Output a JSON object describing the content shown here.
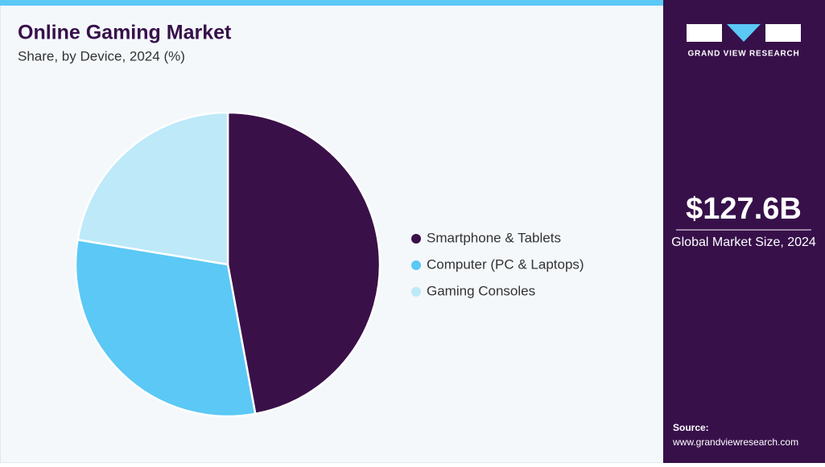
{
  "chart_data": {
    "type": "pie",
    "title": "Online Gaming Market",
    "subtitle": "Share, by Device, 2024 (%)",
    "categories": [
      "Smartphone & Tablets",
      "Computer (PC & Laptops)",
      "Gaming Consoles"
    ],
    "values": [
      47.1,
      30.5,
      22.4
    ],
    "colors": [
      "#3a1048",
      "#5bc8f5",
      "#bde9f9"
    ]
  },
  "sidebar": {
    "brand": "GRAND VIEW RESEARCH",
    "market_size": "$127.6B",
    "market_size_label": "Global Market Size, 2024",
    "source_label": "Source:",
    "source_url": "www.grandviewresearch.com"
  }
}
